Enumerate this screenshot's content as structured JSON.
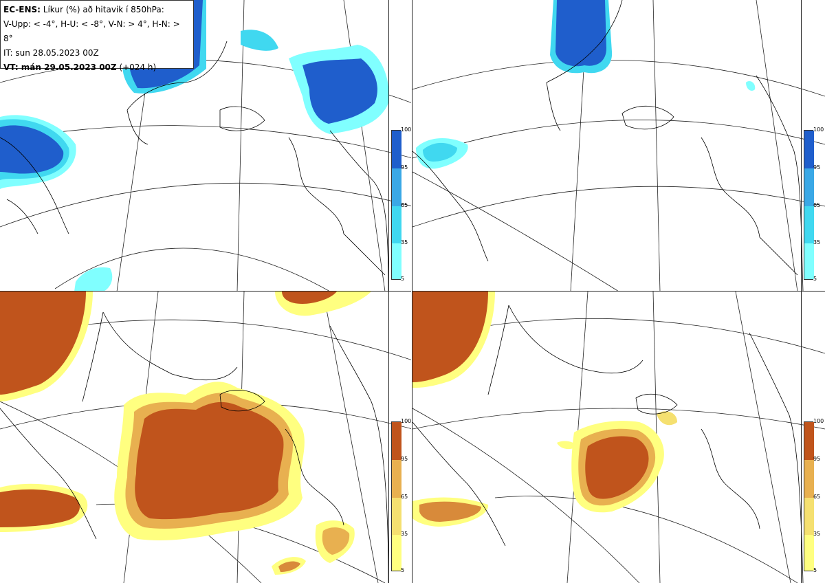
{
  "header": {
    "model": "EC-ENS:",
    "title": "Líkur (%) að hitavik í 850hPa:",
    "thresholds": "V-Upp: < -4°, H-U: < -8°, V-N: > 4°, H-N: > 8°",
    "initial_time": "IT: sun 28.05.2023 00Z",
    "valid_time_label": "VT: mán 29.05.2023 00Z",
    "lead": "(+024 h)"
  },
  "colorbar": {
    "ticks": [
      "100",
      "95",
      "65",
      "35",
      "5"
    ],
    "cold_colors": [
      "#80ffff",
      "#40d8f0",
      "#3aa8e6",
      "#2a6fd8",
      "#1f5ecc"
    ],
    "warm_colors": [
      "#ffff80",
      "#f5e070",
      "#e8b050",
      "#d88a3a",
      "#c0541c"
    ]
  },
  "panels": [
    {
      "id": "top-left",
      "quantity": "V-Upp",
      "palette": "cold"
    },
    {
      "id": "top-right",
      "quantity": "H-U",
      "palette": "cold"
    },
    {
      "id": "bottom-left",
      "quantity": "V-N",
      "palette": "warm"
    },
    {
      "id": "bottom-right",
      "quantity": "H-N",
      "palette": "warm"
    }
  ]
}
